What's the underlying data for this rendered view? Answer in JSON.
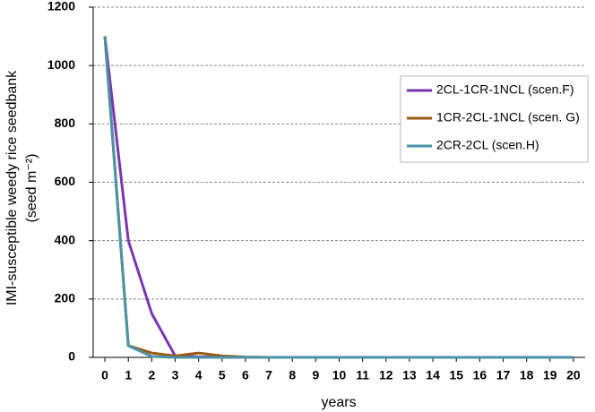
{
  "chart_data": {
    "type": "line",
    "x_label": "years",
    "y_label": [
      "IMI-susceptible weedy rice seedbank",
      "(seed m⁻²)"
    ],
    "x": [
      0,
      1,
      2,
      3,
      4,
      5,
      6,
      7,
      8,
      9,
      10,
      11,
      12,
      13,
      14,
      15,
      16,
      17,
      18,
      19,
      20
    ],
    "xlim": [
      -0.5,
      20.5
    ],
    "xticks": [
      0,
      1,
      2,
      3,
      4,
      5,
      6,
      7,
      8,
      9,
      10,
      11,
      12,
      13,
      14,
      15,
      16,
      17,
      18,
      19,
      20
    ],
    "ylim": [
      0,
      1200
    ],
    "yticks": [
      0,
      200,
      400,
      600,
      800,
      1000,
      1200
    ],
    "grid": true,
    "legend": "right",
    "series": [
      {
        "name": "2CL-1CR-1NCL (scen.F)",
        "color": "#7a35b0",
        "values": [
          1100,
          400,
          150,
          5,
          2,
          1,
          0,
          0,
          0,
          0,
          0,
          0,
          0,
          0,
          0,
          0,
          0,
          0,
          0,
          0,
          0
        ]
      },
      {
        "name": "1CR-2CL-1NCL (scen. G)",
        "color": "#9a5a12",
        "values": [
          1100,
          40,
          15,
          5,
          15,
          5,
          1,
          0,
          0,
          0,
          0,
          0,
          0,
          0,
          0,
          0,
          0,
          0,
          0,
          0,
          0
        ]
      },
      {
        "name": "2CR-2CL (scen.H)",
        "color": "#4a92a8",
        "values": [
          1100,
          40,
          3,
          0,
          0,
          0,
          0,
          0,
          0,
          0,
          0,
          0,
          0,
          0,
          0,
          0,
          0,
          0,
          0,
          0,
          0
        ]
      }
    ]
  }
}
